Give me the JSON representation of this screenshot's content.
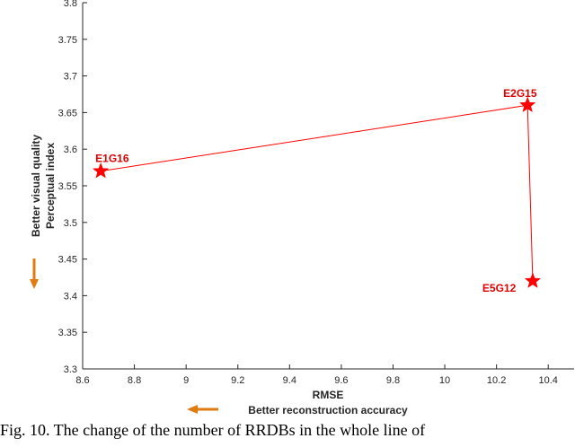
{
  "chart_data": {
    "type": "scatter",
    "title": "",
    "xlabel": "RMSE",
    "ylabel": "Perceptual index",
    "ylabel_note": "Better visual quality",
    "xlabel_note": "Better reconstruction accuracy",
    "xlim": [
      8.6,
      10.5
    ],
    "ylim": [
      3.3,
      3.8
    ],
    "xticks": [
      8.6,
      8.8,
      9,
      9.2,
      9.4,
      9.6,
      9.8,
      10,
      10.2,
      10.4
    ],
    "xtick_labels": [
      "8.6",
      "8.8",
      "9",
      "9.2",
      "9.4",
      "9.6",
      "9.8",
      "10",
      "10.2",
      "10.4"
    ],
    "yticks": [
      3.3,
      3.35,
      3.4,
      3.45,
      3.5,
      3.55,
      3.6,
      3.65,
      3.7,
      3.75,
      3.8
    ],
    "ytick_labels": [
      "3.3",
      "3.35",
      "3.4",
      "3.45",
      "3.5",
      "3.55",
      "3.6",
      "3.65",
      "3.7",
      "3.75",
      "3.8"
    ],
    "grid": false,
    "connected": true,
    "marker": "star",
    "series": [
      {
        "points": [
          {
            "label": "E1G16",
            "x": 8.67,
            "y": 3.57
          },
          {
            "label": "E2G15",
            "x": 10.32,
            "y": 3.66
          },
          {
            "label": "E5G12",
            "x": 10.34,
            "y": 3.42
          }
        ]
      }
    ],
    "colors": {
      "series": "#ff0000",
      "label": "#e00000",
      "arrow": "#e07b10",
      "axis": "#262626"
    }
  },
  "caption": "Fig. 10.   The change of the number of RRDBs in the whole line of"
}
